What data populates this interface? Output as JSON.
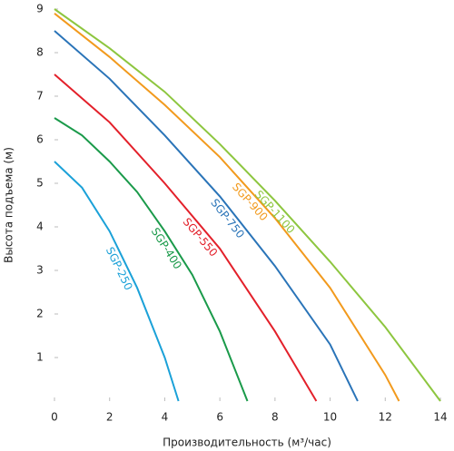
{
  "chart_data": {
    "type": "line",
    "x_label": "Производительность (м³/час)",
    "y_label": "Высота подъема (м)",
    "xlim": [
      0,
      14
    ],
    "xticks": [
      0,
      2,
      4,
      6,
      8,
      10,
      12,
      14
    ],
    "ylim": [
      0,
      9
    ],
    "yticks": [
      1,
      2,
      3,
      4,
      5,
      6,
      7,
      8,
      9
    ],
    "series": [
      {
        "name": "SGP-250",
        "color": "#1ba1d8",
        "x": [
          0,
          1,
          2,
          3,
          4,
          4.5
        ],
        "values": [
          5.5,
          4.9,
          3.9,
          2.6,
          1.0,
          0
        ]
      },
      {
        "name": "SGP-400",
        "color": "#1a9a4a",
        "x": [
          0,
          1,
          2,
          3,
          4,
          5,
          6,
          7
        ],
        "values": [
          6.5,
          6.1,
          5.5,
          4.8,
          3.9,
          2.9,
          1.6,
          0
        ]
      },
      {
        "name": "SGP-550",
        "color": "#e3202a",
        "x": [
          0,
          2,
          4,
          6,
          8,
          9.5
        ],
        "values": [
          7.5,
          6.4,
          5.0,
          3.5,
          1.6,
          0
        ]
      },
      {
        "name": "SGP-750",
        "color": "#2a74b8",
        "x": [
          0,
          2,
          4,
          6,
          8,
          10,
          11
        ],
        "values": [
          8.5,
          7.4,
          6.1,
          4.7,
          3.1,
          1.3,
          0
        ]
      },
      {
        "name": "SGP-900",
        "color": "#f29a1d",
        "x": [
          0,
          2,
          4,
          6,
          8,
          10,
          12,
          12.5
        ],
        "values": [
          8.9,
          7.9,
          6.8,
          5.6,
          4.2,
          2.6,
          0.6,
          0
        ]
      },
      {
        "name": "SGP-1100",
        "color": "#8dc63f",
        "x": [
          0,
          2,
          4,
          6,
          8,
          10,
          12,
          14
        ],
        "values": [
          9,
          8.1,
          7.1,
          5.9,
          4.6,
          3.2,
          1.7,
          0
        ]
      }
    ]
  }
}
